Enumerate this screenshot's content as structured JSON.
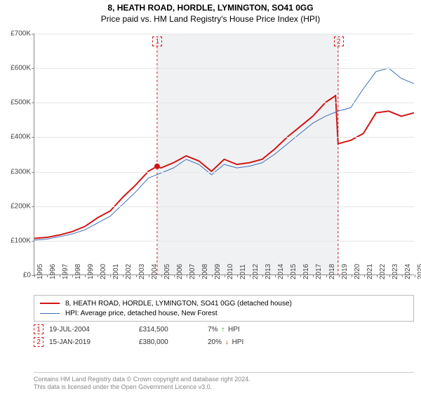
{
  "title": "8, HEATH ROAD, HORDLE, LYMINGTON, SO41 0GG",
  "subtitle": "Price paid vs. HM Land Registry's House Price Index (HPI)",
  "chart": {
    "type": "line",
    "y_axis": {
      "min": 0,
      "max": 700000,
      "step": 100000,
      "labels": [
        "£0",
        "£100K",
        "£200K",
        "£300K",
        "£400K",
        "£500K",
        "£600K",
        "£700K"
      ],
      "label_fontsize": 10,
      "label_color": "#444444",
      "grid_color": "#e6e6e6",
      "axis_color": "#888888"
    },
    "x_axis": {
      "years": [
        1995,
        1996,
        1997,
        1998,
        1999,
        2000,
        2001,
        2002,
        2003,
        2004,
        2005,
        2006,
        2007,
        2008,
        2009,
        2010,
        2011,
        2012,
        2013,
        2014,
        2015,
        2016,
        2017,
        2018,
        2019,
        2020,
        2021,
        2022,
        2023,
        2024,
        2025
      ],
      "label_fontsize": 10,
      "label_color": "#444444",
      "axis_color": "#888888"
    },
    "shaded_region": {
      "from_year": 2004.7,
      "to_year": 2019.0,
      "fill": "#f0f1f3"
    },
    "background_color": "#ffffff",
    "series": [
      {
        "id": "property",
        "label": "8, HEATH ROAD, HORDLE, LYMINGTON, SO41 0GG (detached house)",
        "color": "#d11515",
        "line_width": 2,
        "marker_color": "#d11515",
        "data": [
          [
            1995,
            105000
          ],
          [
            1996,
            108000
          ],
          [
            1997,
            115000
          ],
          [
            1998,
            125000
          ],
          [
            1999,
            140000
          ],
          [
            2000,
            165000
          ],
          [
            2001,
            185000
          ],
          [
            2002,
            225000
          ],
          [
            2003,
            260000
          ],
          [
            2004,
            300000
          ],
          [
            2004.7,
            314500
          ],
          [
            2005,
            310000
          ],
          [
            2006,
            325000
          ],
          [
            2007,
            345000
          ],
          [
            2008,
            330000
          ],
          [
            2009,
            300000
          ],
          [
            2010,
            335000
          ],
          [
            2011,
            320000
          ],
          [
            2012,
            325000
          ],
          [
            2013,
            335000
          ],
          [
            2014,
            365000
          ],
          [
            2015,
            400000
          ],
          [
            2016,
            430000
          ],
          [
            2017,
            460000
          ],
          [
            2018,
            500000
          ],
          [
            2018.8,
            520000
          ],
          [
            2019.0,
            380000
          ],
          [
            2019.5,
            385000
          ],
          [
            2020,
            390000
          ],
          [
            2021,
            410000
          ],
          [
            2022,
            470000
          ],
          [
            2023,
            475000
          ],
          [
            2024,
            460000
          ],
          [
            2025,
            470000
          ]
        ],
        "markers": [
          {
            "x": 2004.7,
            "y": 314500
          }
        ]
      },
      {
        "id": "hpi",
        "label": "HPI: Average price, detached house, New Forest",
        "color": "#3b6db8",
        "line_width": 1,
        "data": [
          [
            1995,
            100000
          ],
          [
            1996,
            103000
          ],
          [
            1997,
            110000
          ],
          [
            1998,
            118000
          ],
          [
            1999,
            130000
          ],
          [
            2000,
            150000
          ],
          [
            2001,
            170000
          ],
          [
            2002,
            205000
          ],
          [
            2003,
            240000
          ],
          [
            2004,
            280000
          ],
          [
            2005,
            295000
          ],
          [
            2006,
            310000
          ],
          [
            2007,
            335000
          ],
          [
            2008,
            320000
          ],
          [
            2009,
            290000
          ],
          [
            2010,
            320000
          ],
          [
            2011,
            310000
          ],
          [
            2012,
            315000
          ],
          [
            2013,
            325000
          ],
          [
            2014,
            350000
          ],
          [
            2015,
            380000
          ],
          [
            2016,
            410000
          ],
          [
            2017,
            440000
          ],
          [
            2018,
            460000
          ],
          [
            2019,
            475000
          ],
          [
            2020,
            485000
          ],
          [
            2021,
            540000
          ],
          [
            2022,
            590000
          ],
          [
            2023,
            600000
          ],
          [
            2024,
            570000
          ],
          [
            2025,
            555000
          ]
        ]
      }
    ],
    "sale_markers": [
      {
        "num": "1",
        "year": 2004.7,
        "color": "#d11515"
      },
      {
        "num": "2",
        "year": 2019.0,
        "color": "#d11515"
      }
    ]
  },
  "legend": {
    "border_color": "#bbbbbb",
    "rows": [
      {
        "color": "#d11515",
        "width": 2
      },
      {
        "color": "#3b6db8",
        "width": 1
      }
    ]
  },
  "sales": [
    {
      "num": "1",
      "color": "#d11515",
      "date": "19-JUL-2004",
      "price": "£314,500",
      "diff_pct": "7%",
      "diff_dir": "up",
      "diff_vs": "HPI"
    },
    {
      "num": "2",
      "color": "#d11515",
      "date": "15-JAN-2019",
      "price": "£380,000",
      "diff_pct": "20%",
      "diff_dir": "down",
      "diff_vs": "HPI"
    }
  ],
  "footer": {
    "line1": "Contains HM Land Registry data © Crown copyright and database right 2024.",
    "line2": "This data is licensed under the Open Government Licence v3.0."
  }
}
